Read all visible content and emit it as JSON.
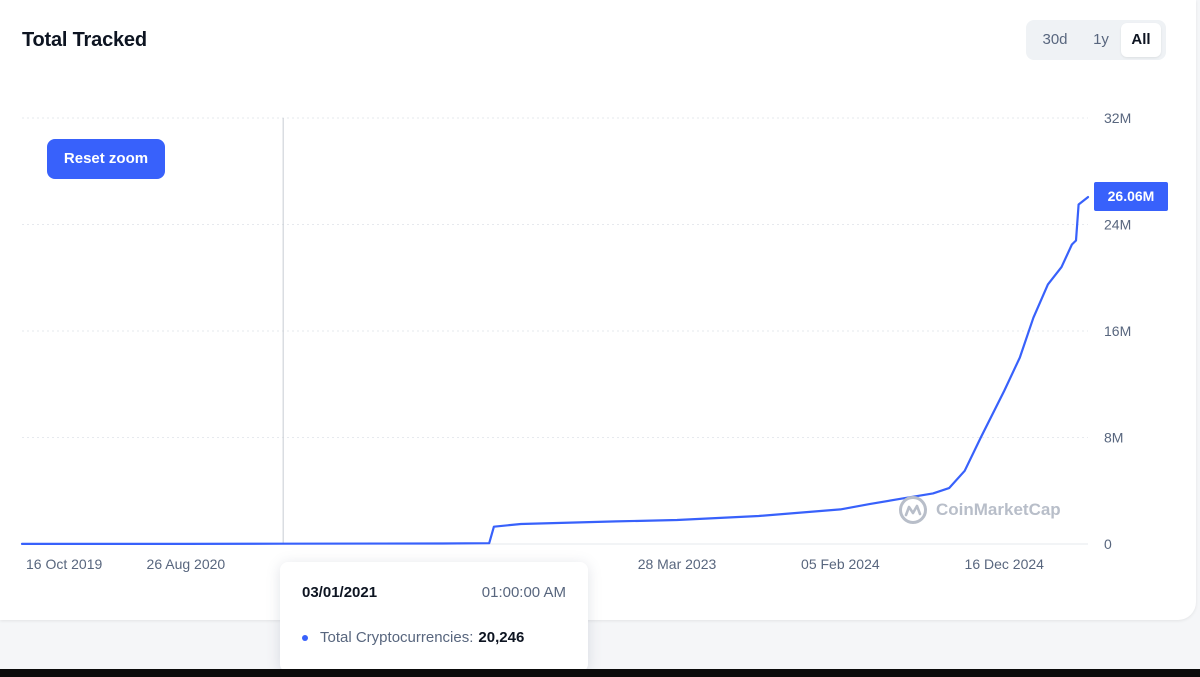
{
  "header": {
    "title": "Total Tracked"
  },
  "range_selector": {
    "options": [
      "30d",
      "1y",
      "All"
    ],
    "selected": "All"
  },
  "controls": {
    "reset_zoom_label": "Reset zoom"
  },
  "last_value_label": "26.06M",
  "watermark": {
    "text": "CoinMarketCap"
  },
  "tooltip": {
    "date": "03/01/2021",
    "time": "01:00:00 AM",
    "series_label": "Total Cryptocurrencies:",
    "value": "20,246"
  },
  "colors": {
    "accent": "#3861fb",
    "gridline": "#e6e9ee",
    "axis_text": "#58667e",
    "title_text": "#0d1421"
  },
  "chart_data": {
    "type": "line",
    "title": "Total Tracked",
    "xlabel": "",
    "ylabel": "",
    "x_tick_labels": [
      "16 Oct 2019",
      "26 Aug 2020",
      "28 Mar 2023",
      "05 Feb 2024",
      "16 Dec 2024"
    ],
    "x_ticks": [
      "2019-10-16",
      "2020-08-26",
      "2023-03-28",
      "2024-02-05",
      "2024-12-16"
    ],
    "xlim": [
      "2019-10-16",
      "2025-05-26"
    ],
    "y_tick_labels": [
      "0",
      "8M",
      "16M",
      "24M",
      "32M"
    ],
    "y_ticks": [
      0,
      8000000,
      16000000,
      24000000,
      32000000
    ],
    "ylim": [
      0,
      32000000
    ],
    "grid": true,
    "legend": "none",
    "crosshair_x": "2021-03-01",
    "series": [
      {
        "name": "Total Cryptocurrencies",
        "color": "#3861fb",
        "points": [
          [
            "2019-10-16",
            4000
          ],
          [
            "2020-08-26",
            8000
          ],
          [
            "2021-03-01",
            20246
          ],
          [
            "2022-01-01",
            40000
          ],
          [
            "2022-04-01",
            60000
          ],
          [
            "2022-04-10",
            1300000
          ],
          [
            "2022-06-01",
            1500000
          ],
          [
            "2022-12-01",
            1700000
          ],
          [
            "2023-03-28",
            1800000
          ],
          [
            "2023-09-01",
            2100000
          ],
          [
            "2024-02-05",
            2600000
          ],
          [
            "2024-04-01",
            3000000
          ],
          [
            "2024-06-01",
            3400000
          ],
          [
            "2024-08-01",
            3800000
          ],
          [
            "2024-09-01",
            4200000
          ],
          [
            "2024-10-01",
            5500000
          ],
          [
            "2024-11-01",
            8000000
          ],
          [
            "2024-12-16",
            11500000
          ],
          [
            "2025-01-15",
            14000000
          ],
          [
            "2025-02-10",
            17000000
          ],
          [
            "2025-03-10",
            19500000
          ],
          [
            "2025-04-05",
            20800000
          ],
          [
            "2025-04-25",
            22500000
          ],
          [
            "2025-05-03",
            22800000
          ],
          [
            "2025-05-08",
            25500000
          ],
          [
            "2025-05-26",
            26060000
          ]
        ]
      }
    ]
  }
}
